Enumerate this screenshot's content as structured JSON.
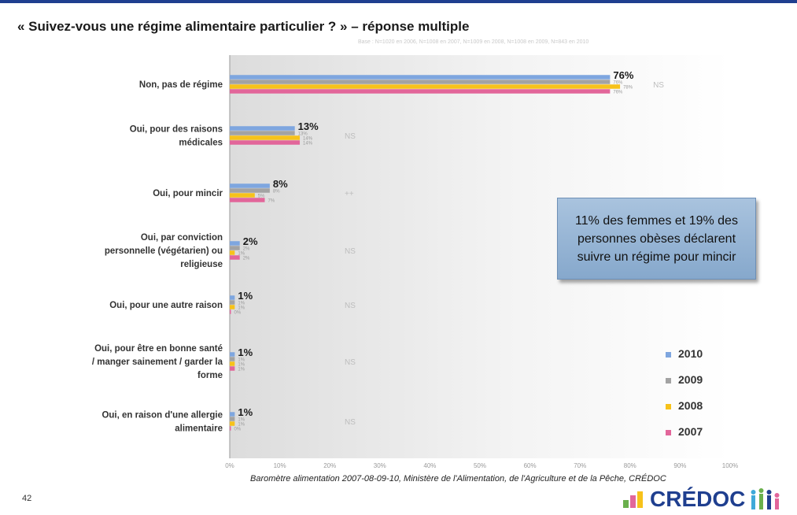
{
  "header": {
    "title": "« Suivez-vous une régime alimentaire particulier ? » – réponse multiple",
    "subnote": "Base : N=1020 en 2006, N=1008 en 2007, N=1009 en 2008, N=1008 en 2009, N=843 en 2010"
  },
  "callout": {
    "text": "11% des femmes et 19% des personnes obèses déclarent suivre un régime pour mincir"
  },
  "footer": {
    "source": "Baromètre alimentation 2007-08-09-10, Ministère de l'Alimentation, de l'Agriculture et de la Pêche, CRÉDOC",
    "page_number": "42",
    "logo_text": "CRÉDOC"
  },
  "chart_data": {
    "type": "bar",
    "orientation": "horizontal",
    "categories": [
      "Non, pas de régime",
      "Oui, pour des raisons médicales",
      "Oui, pour mincir",
      "Oui, par conviction personnelle (végétarien) ou religieuse",
      "Oui, pour une autre raison",
      "Oui, pour être en bonne santé / manger sainement / garder la forme",
      "Oui, en raison d'une allergie alimentaire"
    ],
    "series": [
      {
        "name": "2010",
        "color": "#7ea6df",
        "values": [
          76,
          13,
          8,
          2,
          1,
          1,
          1
        ]
      },
      {
        "name": "2009",
        "color": "#a3a3a3",
        "values": [
          76,
          13,
          8,
          2,
          1,
          1,
          1
        ]
      },
      {
        "name": "2008",
        "color": "#f7c21a",
        "values": [
          78,
          14,
          5,
          1,
          1,
          1,
          1
        ]
      },
      {
        "name": "2007",
        "color": "#e2669a",
        "values": [
          76,
          14,
          7,
          2,
          0,
          1,
          0
        ]
      }
    ],
    "significance": [
      "NS",
      "NS",
      "++",
      "NS",
      "NS",
      "NS",
      "NS"
    ],
    "xlim": [
      0,
      100
    ],
    "xticks": [
      "0%",
      "10%",
      "20%",
      "30%",
      "40%",
      "50%",
      "60%",
      "70%",
      "80%",
      "90%",
      "100%"
    ],
    "legend": "bottom-right",
    "grid": false,
    "value_suffix": "%"
  }
}
